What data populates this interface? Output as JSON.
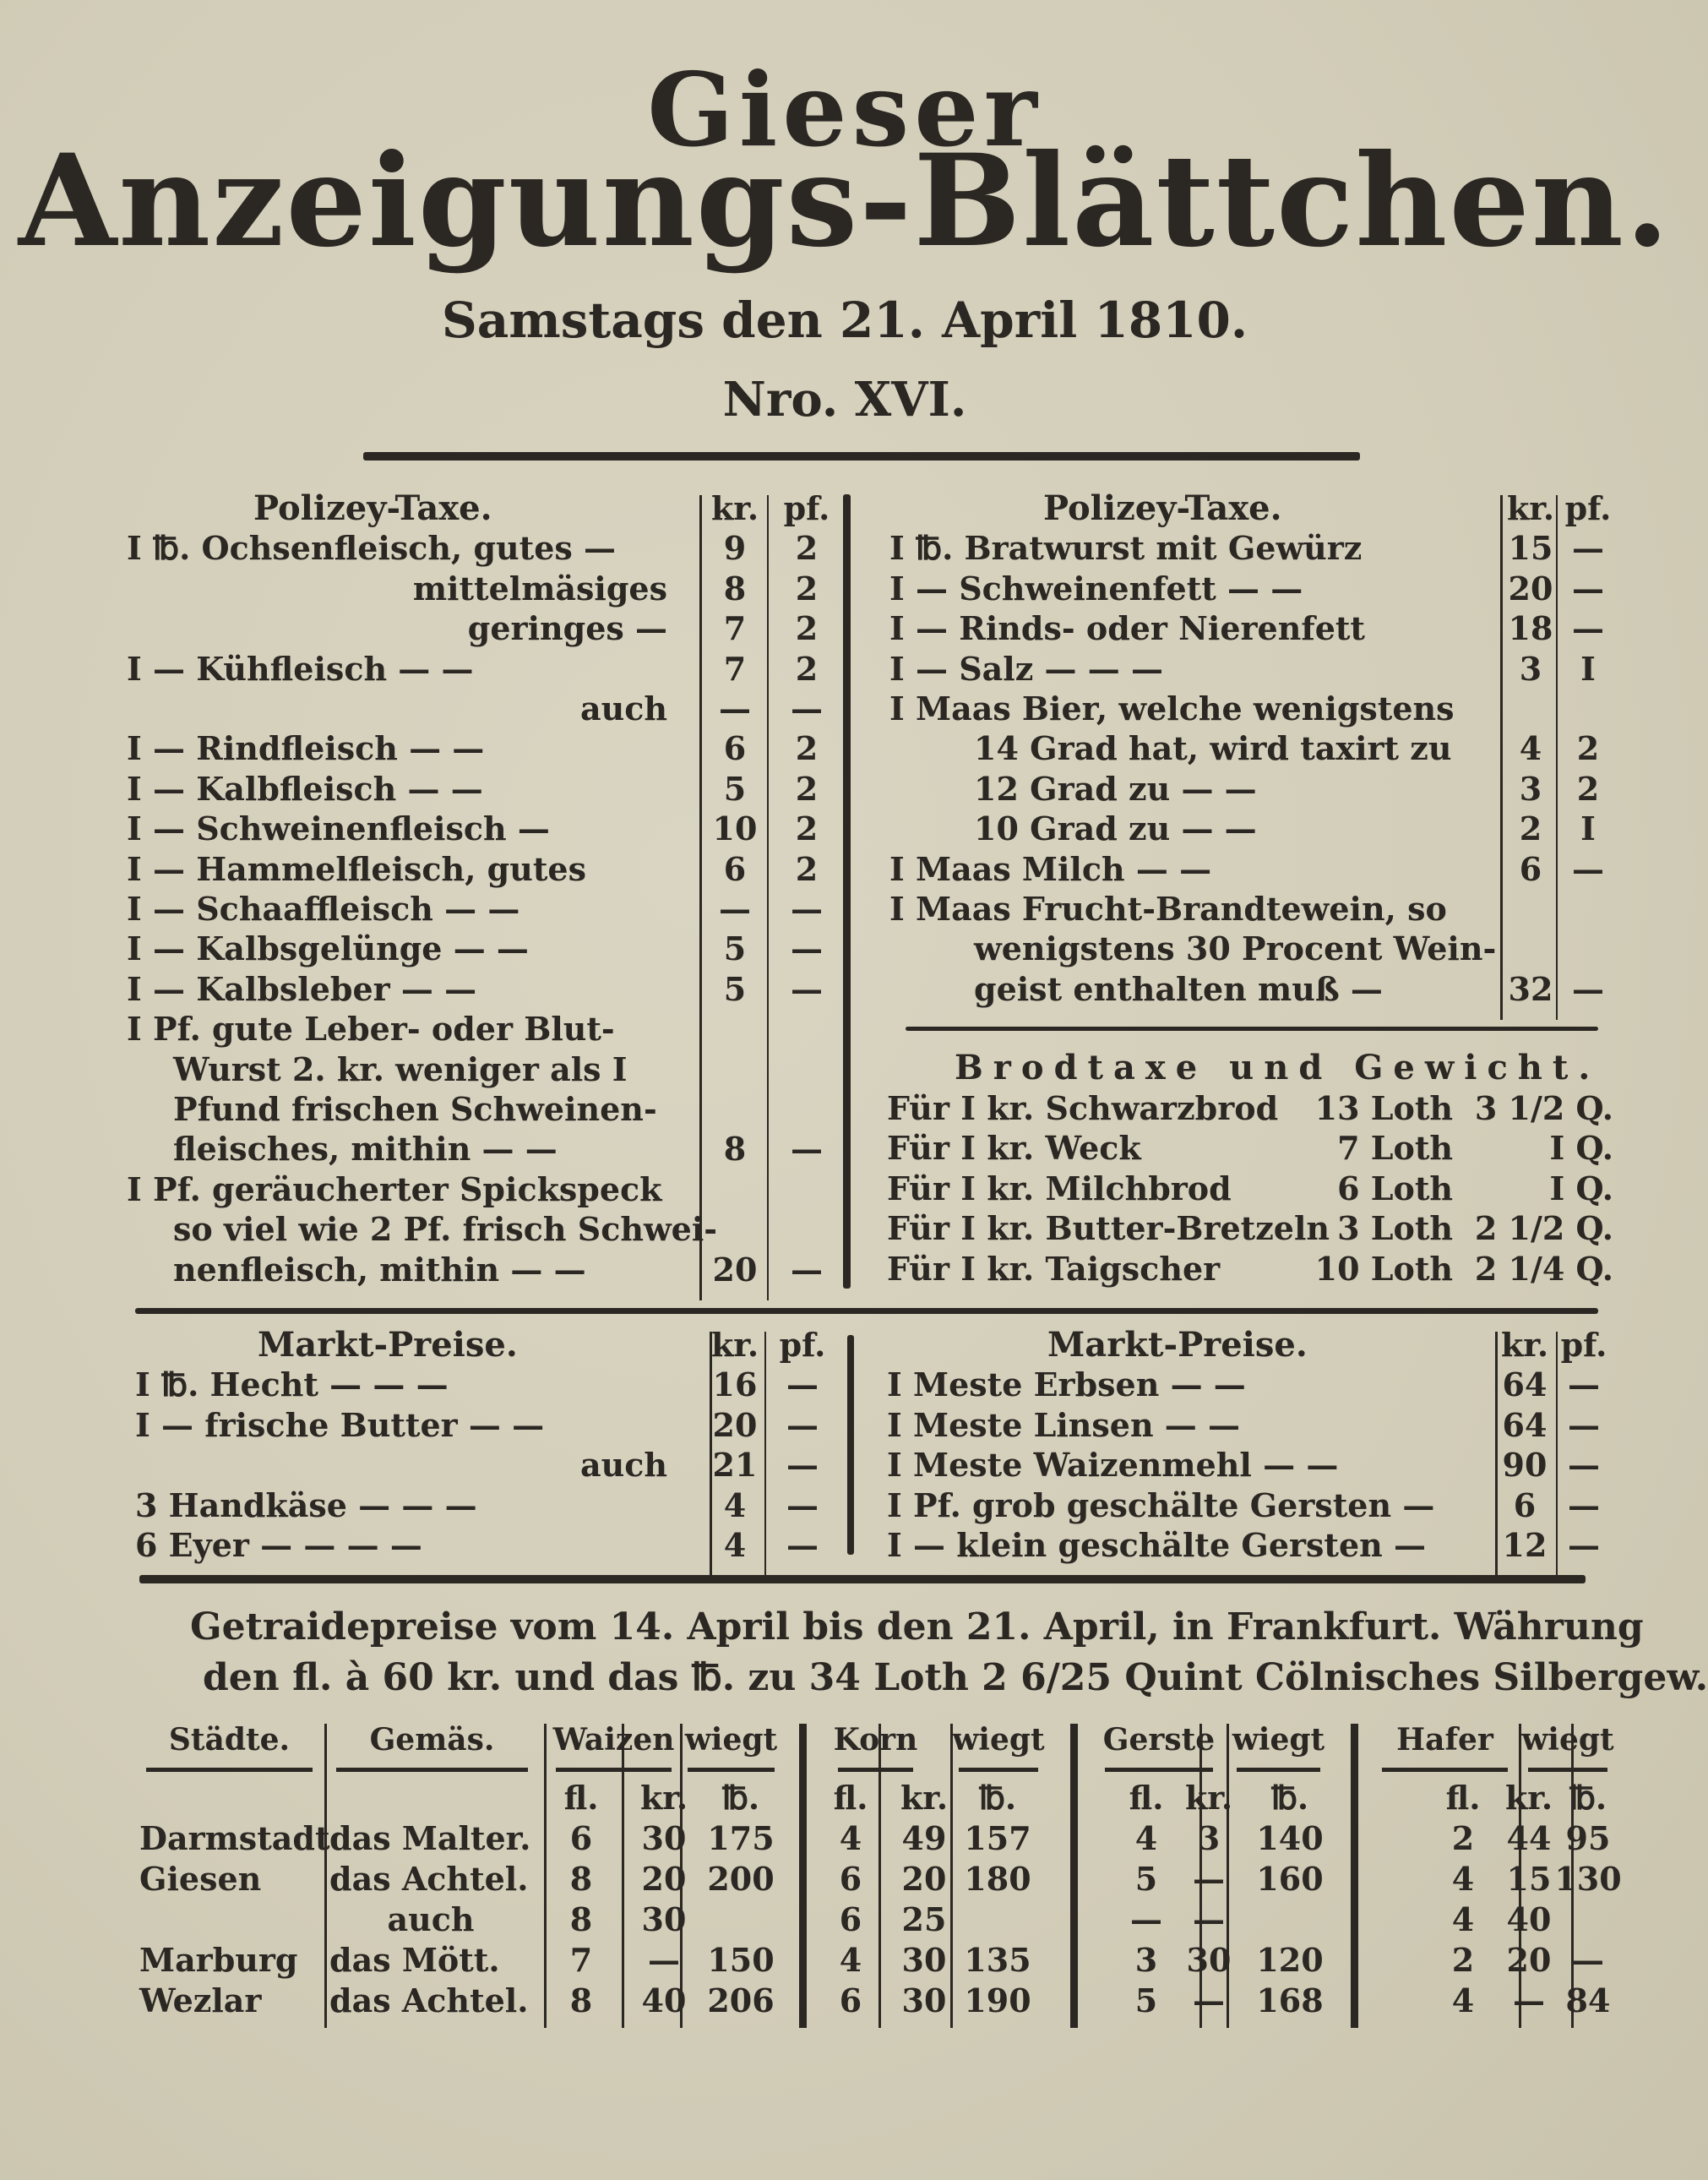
{
  "masthead": {
    "title_line1": "Gieser",
    "title_line2": "Anzeigungs-Blättchen.",
    "date": "Samstags den 21. April 1810.",
    "number": "Nro. XVI."
  },
  "polizey_left": {
    "heading": "Polizey-Taxe.",
    "col_kr": "kr.",
    "col_pf": "pf.",
    "rows": [
      {
        "text": "I ℔. Ochsenfleisch, gutes —",
        "kr": "9",
        "pf": "2"
      },
      {
        "text": "mittelmäsiges",
        "kr": "8",
        "pf": "2",
        "align": "right"
      },
      {
        "text": "geringes —",
        "kr": "7",
        "pf": "2",
        "align": "right"
      },
      {
        "text": "I — Kühfleisch —   —",
        "kr": "7",
        "pf": "2"
      },
      {
        "text": "auch",
        "kr": "—",
        "pf": "—",
        "align": "right"
      },
      {
        "text": "I — Rindfleisch —   —",
        "kr": "6",
        "pf": "2"
      },
      {
        "text": "I — Kalbfleisch —   —",
        "kr": "5",
        "pf": "2"
      },
      {
        "text": "I — Schweinenfleisch —",
        "kr": "10",
        "pf": "2"
      },
      {
        "text": "I — Hammelfleisch, gutes",
        "kr": "6",
        "pf": "2"
      },
      {
        "text": "I — Schaaffleisch —  —",
        "kr": "—",
        "pf": "—"
      },
      {
        "text": "I — Kalbsgelünge —  —",
        "kr": "5",
        "pf": "—"
      },
      {
        "text": "I — Kalbsleber —   —",
        "kr": "5",
        "pf": "—"
      },
      {
        "text": "I Pf. gute Leber- oder Blut-",
        "kr": "",
        "pf": ""
      },
      {
        "text": "Wurst 2. kr. weniger als I",
        "kr": "",
        "pf": "",
        "indent": true
      },
      {
        "text": "Pfund frischen Schweinen-",
        "kr": "",
        "pf": "",
        "indent": true
      },
      {
        "text": "fleisches, mithin —  —",
        "kr": "8",
        "pf": "—",
        "indent": true
      },
      {
        "text": "I Pf. geräucherter Spickspeck",
        "kr": "",
        "pf": ""
      },
      {
        "text": "so viel wie 2 Pf. frisch Schwei-",
        "kr": "",
        "pf": "",
        "indent": true
      },
      {
        "text": "nenfleisch, mithin —  —",
        "kr": "20",
        "pf": "—",
        "indent": true
      }
    ]
  },
  "polizey_right": {
    "heading": "Polizey-Taxe.",
    "col_kr": "kr.",
    "col_pf": "pf.",
    "rows": [
      {
        "text": "I ℔. Bratwurst mit Gewürz",
        "kr": "15",
        "pf": "—"
      },
      {
        "text": "I — Schweinenfett —   —",
        "kr": "20",
        "pf": "—"
      },
      {
        "text": "I — Rinds- oder Nierenfett",
        "kr": "18",
        "pf": "—"
      },
      {
        "text": "I — Salz —   —   —",
        "kr": "3",
        "pf": "I"
      },
      {
        "text": "I Maas Bier, welche wenigstens",
        "kr": "",
        "pf": ""
      },
      {
        "text": "14 Grad hat, wird taxirt zu",
        "kr": "4",
        "pf": "2",
        "indent": true
      },
      {
        "text": "12 Grad zu   —   —",
        "kr": "3",
        "pf": "2",
        "indent": true
      },
      {
        "text": "10 Grad zu   —   —",
        "kr": "2",
        "pf": "I",
        "indent": true
      },
      {
        "text": "I Maas Milch   —   —",
        "kr": "6",
        "pf": "—"
      },
      {
        "text": "I Maas Frucht-Brandtewein, so",
        "kr": "",
        "pf": ""
      },
      {
        "text": "wenigstens 30 Procent Wein-",
        "kr": "",
        "pf": "",
        "indent": true
      },
      {
        "text": "geist enthalten muß   —",
        "kr": "32",
        "pf": "—",
        "indent": true
      }
    ]
  },
  "brodtaxe": {
    "heading": "Brodtaxe und Gewicht.",
    "rows": [
      {
        "item": "Für I kr. Schwarzbrod",
        "loth": "13 Loth",
        "quint": "3 1/2 Q."
      },
      {
        "item": "Für I kr. Weck",
        "loth": "7 Loth",
        "quint": "I Q."
      },
      {
        "item": "Für I kr. Milchbrod",
        "loth": "6 Loth",
        "quint": "I Q."
      },
      {
        "item": "Für I kr. Butter-Bretzeln",
        "loth": "3 Loth",
        "quint": "2 1/2 Q."
      },
      {
        "item": "Für I kr. Taigscher",
        "loth": "10 Loth",
        "quint": "2 1/4 Q."
      }
    ]
  },
  "markt_left": {
    "heading": "Markt-Preise.",
    "col_kr": "kr.",
    "col_pf": "pf.",
    "rows": [
      {
        "text": "I ℔. Hecht  —  —  —",
        "kr": "16",
        "pf": "—"
      },
      {
        "text": "I — frische Butter —  —",
        "kr": "20",
        "pf": "—"
      },
      {
        "text": "auch",
        "kr": "21",
        "pf": "—",
        "align": "right"
      },
      {
        "text": "3 Handkäse  —  —  —",
        "kr": "4",
        "pf": "—"
      },
      {
        "text": "6 Eyer  —  —  —  —",
        "kr": "4",
        "pf": "—"
      }
    ]
  },
  "markt_right": {
    "heading": "Markt-Preise.",
    "col_kr": "kr.",
    "col_pf": "pf.",
    "rows": [
      {
        "text": "I Meste Erbsen    —   —",
        "kr": "64",
        "pf": "—"
      },
      {
        "text": "I Meste Linsen    —   —",
        "kr": "64",
        "pf": "—"
      },
      {
        "text": "I Meste Waizenmehl —  —",
        "kr": "90",
        "pf": "—"
      },
      {
        "text": "I Pf. grob geschälte Gersten —",
        "kr": "6",
        "pf": "—"
      },
      {
        "text": "I — klein geschälte Gersten —",
        "kr": "12",
        "pf": "—"
      }
    ]
  },
  "getraide": {
    "line1": "Getraidepreise vom 14. April bis den 21. April, in Frankfurt. Währung",
    "line2": "den fl. à 60 kr. und das ℔. zu 34 Loth 2 6/25 Quint Cölnisches Silbergew.",
    "headers": [
      "Städte.",
      "Gemäs.",
      "Waizen",
      "wiegt",
      "Korn",
      "wiegt",
      "Gerste",
      "wiegt",
      "Hafer",
      "wiegt"
    ],
    "subheaders": [
      "fl.",
      "kr.",
      "℔.",
      "fl.",
      "kr.",
      "℔.",
      "fl.",
      "kr.",
      "℔.",
      "fl.",
      "kr.",
      "℔."
    ],
    "rows": [
      [
        "Darmstadt",
        "das Malter.",
        "6",
        "30",
        "175",
        "4",
        "49",
        "157",
        "4",
        "3",
        "140",
        "2",
        "44",
        "95"
      ],
      [
        "Giesen",
        "das Achtel.",
        "8",
        "20",
        "200",
        "6",
        "20",
        "180",
        "5",
        "—",
        "160",
        "4",
        "15",
        "130"
      ],
      [
        "",
        "auch",
        "8",
        "30",
        "",
        "6",
        "25",
        "",
        "—",
        "—",
        "",
        "4",
        "40",
        ""
      ],
      [
        "Marburg",
        "das Mött.",
        "7",
        "—",
        "150",
        "4",
        "30",
        "135",
        "3",
        "30",
        "120",
        "2",
        "20",
        "—"
      ],
      [
        "Wezlar",
        "das Achtel.",
        "8",
        "40",
        "206",
        "6",
        "30",
        "190",
        "5",
        "—",
        "168",
        "4",
        "—",
        "84"
      ]
    ]
  }
}
